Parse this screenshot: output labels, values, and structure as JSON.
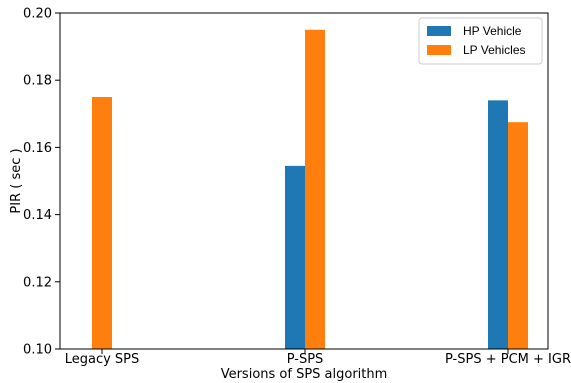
{
  "chart_data": {
    "type": "bar",
    "categories": [
      "Legacy SPS",
      "P-SPS",
      "P-SPS + PCM + IGR"
    ],
    "series": [
      {
        "name": "HP Vehicle",
        "values": [
          null,
          0.1545,
          0.174
        ],
        "color": "#1f77b4"
      },
      {
        "name": "LP Vehicles",
        "values": [
          0.175,
          0.195,
          0.1675
        ],
        "color": "#ff7f0e"
      }
    ],
    "xlabel": "Versions of SPS algorithm",
    "ylabel": "PIR ( sec )",
    "ylim": [
      0.1,
      0.2
    ],
    "yticks": [
      0.1,
      0.12,
      0.14,
      0.16,
      0.18,
      0.2
    ],
    "ytick_labels": [
      "0.10",
      "0.12",
      "0.14",
      "0.16",
      "0.18",
      "0.20"
    ],
    "grid": false,
    "legend_position": "top-right"
  }
}
